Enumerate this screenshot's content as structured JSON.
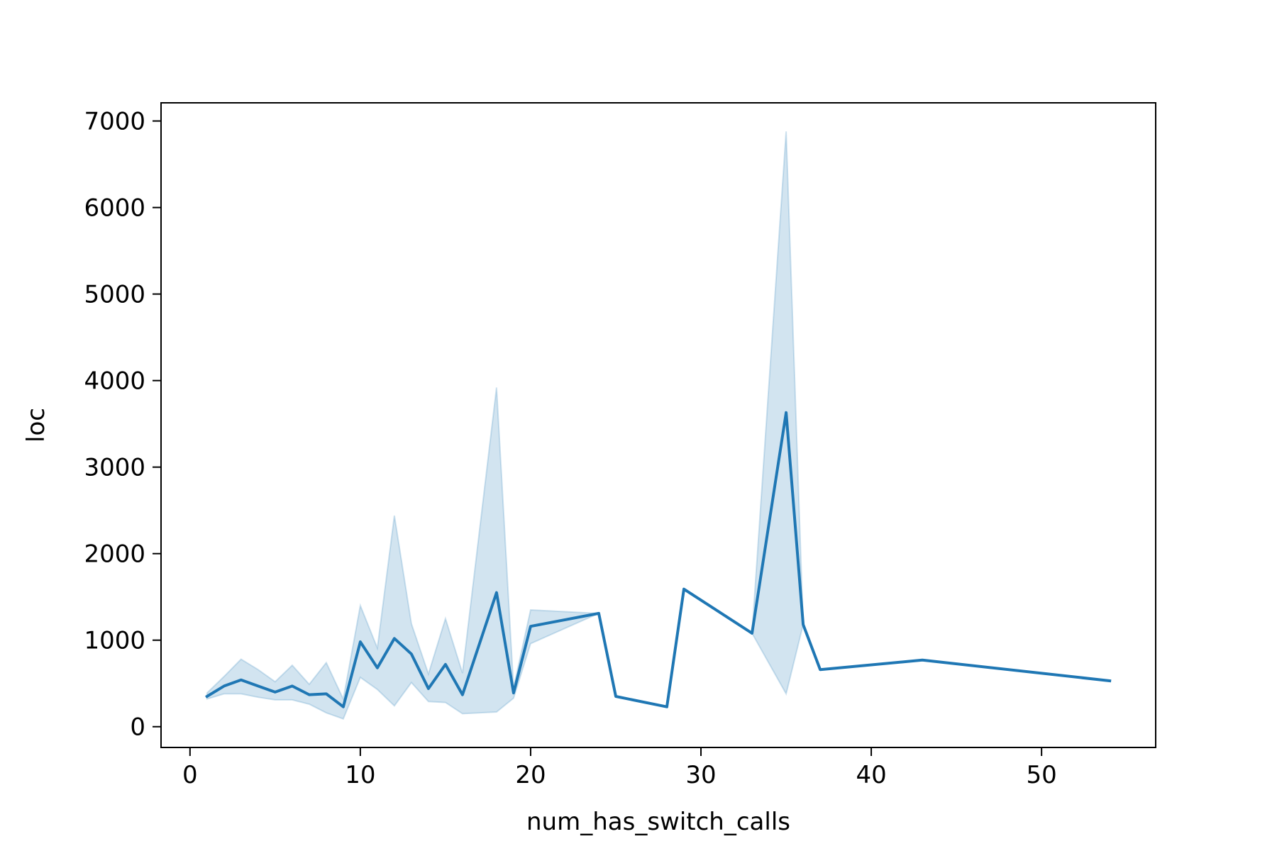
{
  "chart_data": {
    "type": "line",
    "title": "",
    "xlabel": "num_has_switch_calls",
    "ylabel": "loc",
    "xlim": [
      -1.7,
      56.7
    ],
    "ylim": [
      -240,
      7210
    ],
    "xticks": [
      0,
      10,
      20,
      30,
      40,
      50
    ],
    "yticks": [
      0,
      1000,
      2000,
      3000,
      4000,
      5000,
      6000,
      7000
    ],
    "grid": false,
    "legend": "none",
    "colors": {
      "line": "#1f77b4",
      "band": "#1f77b4",
      "axes": "#000000"
    },
    "series": [
      {
        "x": [
          1,
          2,
          3,
          4,
          5,
          6,
          7,
          8,
          9,
          10,
          11,
          12,
          13,
          14,
          15,
          16,
          18,
          19,
          20,
          24,
          25,
          28,
          29,
          33,
          35,
          36,
          37,
          43,
          54
        ],
        "y": [
          350,
          470,
          540,
          470,
          400,
          470,
          370,
          380,
          230,
          980,
          680,
          1020,
          840,
          440,
          720,
          370,
          1550,
          390,
          1160,
          1310,
          350,
          230,
          1590,
          1080,
          3630,
          1180,
          660,
          770,
          530
        ],
        "ci_lower": [
          320,
          380,
          380,
          340,
          310,
          310,
          260,
          160,
          90,
          570,
          430,
          240,
          510,
          290,
          280,
          150,
          170,
          330,
          960,
          1310,
          350,
          230,
          1590,
          1080,
          380,
          1180,
          660,
          770,
          530
        ],
        "ci_upper": [
          390,
          580,
          780,
          660,
          520,
          710,
          490,
          740,
          320,
          1400,
          910,
          2440,
          1190,
          610,
          1250,
          620,
          3920,
          450,
          1350,
          1310,
          350,
          230,
          1590,
          1080,
          6880,
          1180,
          660,
          770,
          530
        ]
      }
    ]
  }
}
